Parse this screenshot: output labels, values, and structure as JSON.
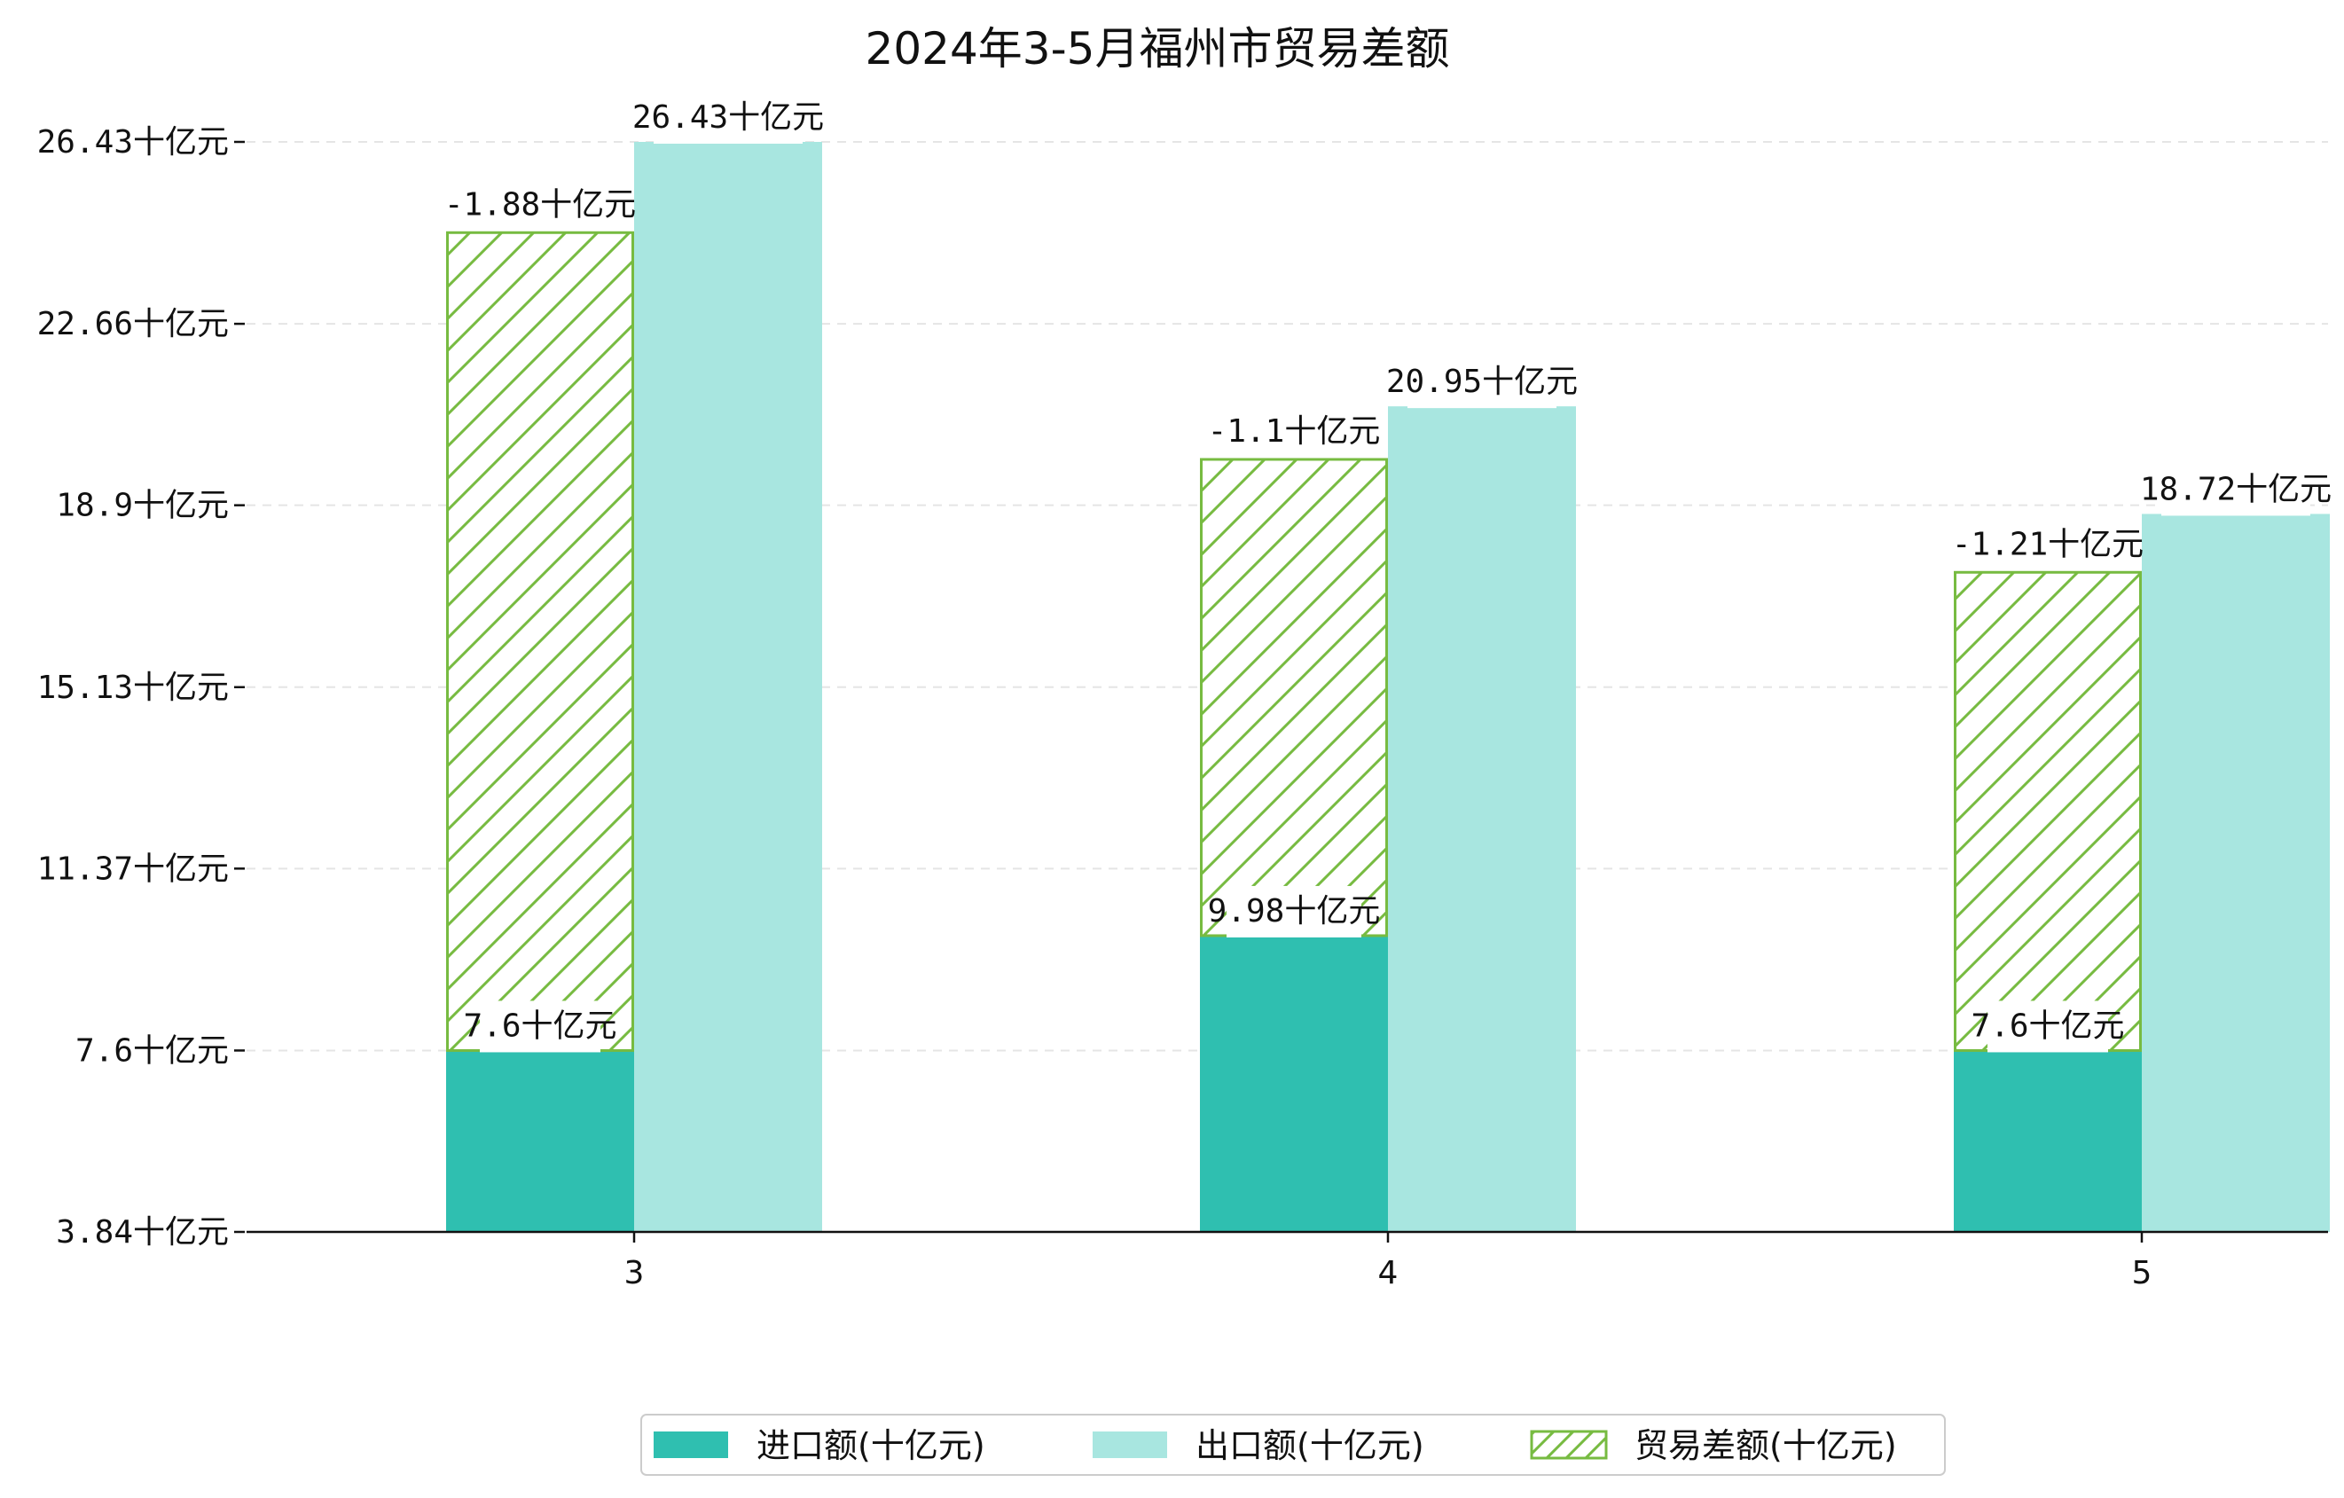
{
  "chart_data": {
    "type": "bar",
    "title": "2024年3-5月福州市贸易差额",
    "categories": [
      "3",
      "4",
      "5"
    ],
    "series": [
      {
        "name": "进口额(十亿元)",
        "values": [
          7.6,
          9.98,
          7.6
        ],
        "color": "#2fbfb0",
        "labels": [
          "7.6十亿元",
          "9.98十亿元",
          "7.6十亿元"
        ]
      },
      {
        "name": "出口额(十亿元)",
        "values": [
          26.43,
          20.95,
          18.72
        ],
        "color": "#a8e6e0",
        "labels": [
          "26.43十亿元",
          "20.95十亿元",
          "18.72十亿元"
        ]
      },
      {
        "name": "贸易差额(十亿元)",
        "values": [
          -1.88,
          -1.1,
          -1.21
        ],
        "color": "#77bb41",
        "hatch": true,
        "labels": [
          "-1.88十亿元",
          "-1.1十亿元",
          "-1.21十亿元"
        ]
      }
    ],
    "yticks": [
      "3.84十亿元",
      "7.6十亿元",
      "11.37十亿元",
      "15.13十亿元",
      "18.9十亿元",
      "22.66十亿元",
      "26.43十亿元"
    ],
    "ytick_values": [
      3.84,
      7.6,
      11.37,
      15.13,
      18.9,
      22.66,
      26.43
    ],
    "ylim": [
      3.84,
      28.1
    ],
    "grid": true,
    "legend_position": "bottom-center"
  }
}
